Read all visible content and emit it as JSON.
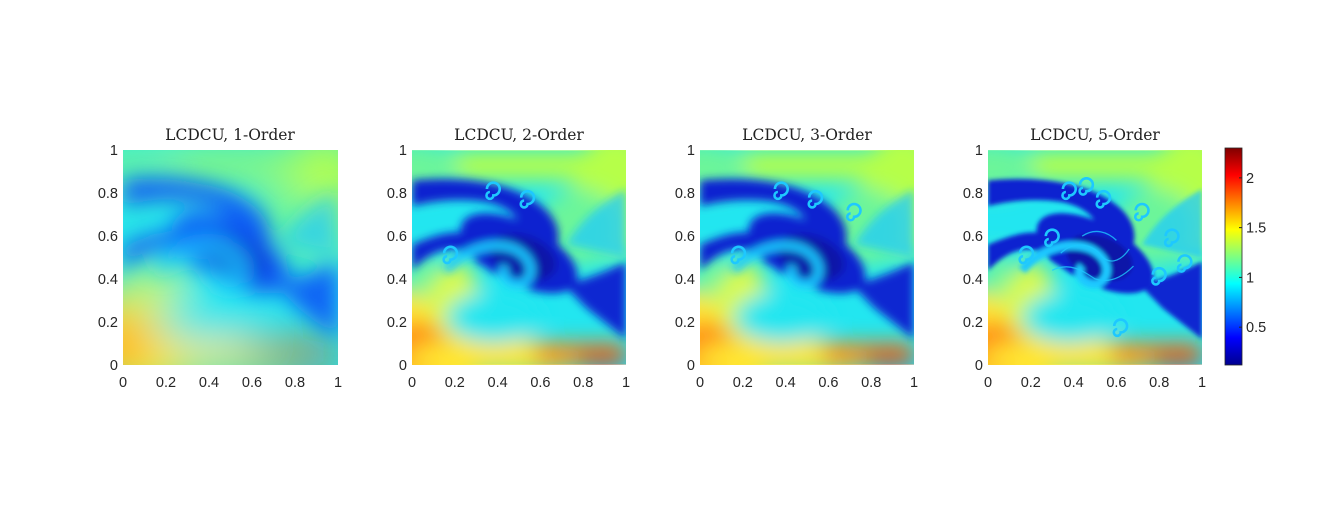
{
  "chart_data": [
    {
      "type": "heatmap",
      "title": "LCDCU, 1-Order",
      "xlim": [
        0,
        1
      ],
      "ylim": [
        0,
        1
      ],
      "xticks": [
        "0",
        "0.2",
        "0.4",
        "0.6",
        "0.8",
        "1"
      ],
      "yticks": [
        "0",
        "0.2",
        "0.4",
        "0.6",
        "0.8",
        "1"
      ],
      "feature": "smooth diffused spiral",
      "background_color": "#ff0000"
    },
    {
      "type": "heatmap",
      "title": "LCDCU, 2-Order",
      "xlim": [
        0,
        1
      ],
      "ylim": [
        0,
        1
      ],
      "xticks": [
        "0",
        "0.2",
        "0.4",
        "0.6",
        "0.8",
        "1"
      ],
      "yticks": [
        "0",
        "0.2",
        "0.4",
        "0.6",
        "0.8",
        "1"
      ],
      "feature": "sharper spiral with a few roll-ups"
    },
    {
      "type": "heatmap",
      "title": "LCDCU, 3-Order",
      "xlim": [
        0,
        1
      ],
      "ylim": [
        0,
        1
      ],
      "xticks": [
        "0",
        "0.2",
        "0.4",
        "0.6",
        "0.8",
        "1"
      ],
      "yticks": [
        "0",
        "0.2",
        "0.4",
        "0.6",
        "0.8",
        "1"
      ],
      "feature": "sharper spiral with more roll-ups"
    },
    {
      "type": "heatmap",
      "title": "LCDCU, 5-Order",
      "xlim": [
        0,
        1
      ],
      "ylim": [
        0,
        1
      ],
      "xticks": [
        "0",
        "0.2",
        "0.4",
        "0.6",
        "0.8",
        "1"
      ],
      "yticks": [
        "0",
        "0.2",
        "0.4",
        "0.6",
        "0.8",
        "1"
      ],
      "feature": "highly resolved spiral with many Kelvin-Helmholtz roll-ups"
    }
  ],
  "colorbar": {
    "colormap": "jet",
    "range": [
      0.12,
      2.3
    ],
    "ticks": [
      0.5,
      1,
      1.5,
      2
    ],
    "tick_labels": [
      "0.5",
      "1",
      "1.5",
      "2"
    ]
  }
}
